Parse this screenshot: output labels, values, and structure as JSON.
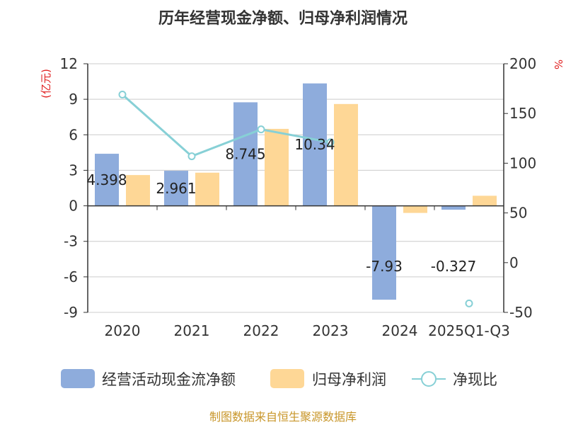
{
  "title": "历年经营现金净额、归母净利润情况",
  "source": "制图数据来自恒生聚源数据库",
  "colors": {
    "cash": "#8eacdc",
    "profit": "#fed796",
    "ratio": "#87d0d6",
    "axis": "#333333",
    "grid": "#cccccc",
    "unit": "#e02020",
    "source": "#c8962a"
  },
  "chart_data": {
    "type": "bar",
    "title": "历年经营现金净额、归母净利润情况",
    "categories": [
      "2020",
      "2021",
      "2022",
      "2023",
      "2024",
      "2025Q1-Q3"
    ],
    "left_axis": {
      "unit": "(亿元)",
      "ticks": [
        "12",
        "9",
        "6",
        "3",
        "0",
        "-3",
        "-6",
        "-9"
      ],
      "ylim": [
        -9,
        12
      ]
    },
    "right_axis": {
      "unit": "%",
      "ticks": [
        "200",
        "150",
        "100",
        "50",
        "0",
        "-50"
      ],
      "ylim": [
        -50,
        200
      ]
    },
    "series": [
      {
        "name": "经营活动现金流净额",
        "kind": "bar",
        "axis": "left",
        "color": "#8eacdc",
        "values": [
          4.398,
          2.961,
          8.745,
          10.34,
          -7.93,
          -0.327
        ],
        "labels": [
          "4.398",
          "2.961",
          "8.745",
          "10.34",
          "-7.93",
          "-0.327"
        ]
      },
      {
        "name": "归母净利润",
        "kind": "bar",
        "axis": "left",
        "color": "#fed796",
        "values": [
          2.6,
          2.8,
          6.5,
          8.6,
          -0.6,
          0.85
        ]
      },
      {
        "name": "净现比",
        "kind": "line",
        "axis": "right",
        "color": "#87d0d6",
        "values": [
          169,
          107,
          134,
          121,
          null,
          -41
        ]
      }
    ],
    "legend": {
      "placement": "bottom"
    },
    "grid": true
  }
}
